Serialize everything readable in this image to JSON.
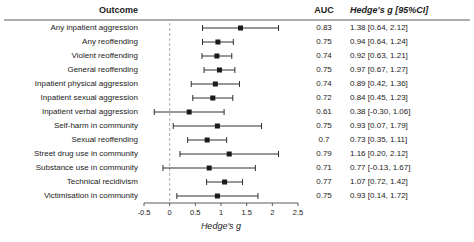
{
  "chart_data": {
    "type": "forest",
    "categories": [
      "Any inpatient aggression",
      "Any reoffending",
      "Violent reoffending",
      "General reoffending",
      "Inpatient physical aggression",
      "Inpatient sexual aggression",
      "Inpatient verbal aggression",
      "Self-harm in community",
      "Sexual reoffending",
      "Street drug use in community",
      "Substance use in community",
      "Technical recidivism",
      "Victimisation in community"
    ],
    "values": [
      1.38,
      0.94,
      0.92,
      0.97,
      0.89,
      0.84,
      0.38,
      0.93,
      0.73,
      1.16,
      0.77,
      1.07,
      0.93
    ],
    "ci_lower": [
      0.64,
      0.64,
      0.63,
      0.67,
      0.42,
      0.45,
      -0.3,
      0.07,
      0.35,
      0.2,
      -0.13,
      0.72,
      0.14
    ],
    "ci_upper": [
      2.12,
      1.24,
      1.21,
      1.27,
      1.36,
      1.23,
      1.06,
      1.79,
      1.11,
      2.12,
      1.67,
      1.42,
      1.72
    ],
    "auc": [
      "0.83",
      "0.75",
      "0.74",
      "0.75",
      "0.74",
      "0.72",
      "0.61",
      "0.75",
      "0.7",
      "0.79",
      "0.71",
      "0.77",
      "0.75"
    ],
    "value_labels": [
      "1.38 [0.64, 2.12]",
      "0.94 [0.64, 1.24]",
      "0.92 [0.63, 1.21]",
      "0.97 [0.67, 1.27]",
      "0.89 [0.42, 1.36]",
      "0.84 [0.45, 1.23]",
      "0.38 [-0.30, 1.06]",
      "0.93 [0.07, 1.79]",
      "0.73 [0.35, 1.11]",
      "1.16 [0.20, 2.12]",
      "0.77 [-0.13, 1.67]",
      "1.07 [0.72, 1.42]",
      "0.93 [0.14, 1.72]"
    ],
    "reference_line": 0,
    "xlim": [
      -0.5,
      2.5
    ],
    "xticks": [
      -0.5,
      0,
      0.5,
      1,
      1.5,
      2,
      2.5
    ],
    "xlabel": "Hedge's g",
    "category_header": "Outcome",
    "auc_header": "AUC",
    "label_header": "Hedge's g [95%CI]",
    "color": "#1a1a1a",
    "marker": "square"
  }
}
